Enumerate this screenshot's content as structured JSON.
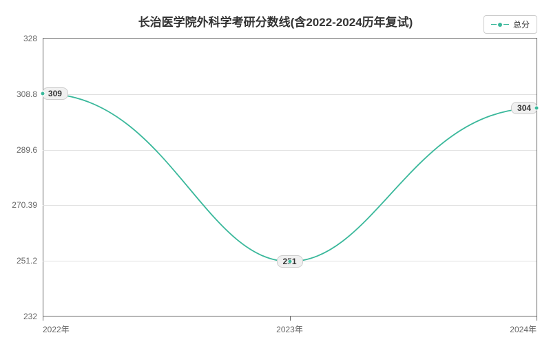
{
  "chart": {
    "type": "line",
    "title": "长治医学院外科学考研分数线(含2022-2024历年复试)",
    "title_fontsize": 17,
    "title_color": "#333333",
    "background_color": "#ffffff",
    "grid_color": "#e0e0e0",
    "axis_color": "#666666",
    "legend": {
      "label": "总分",
      "color": "#3ab89b",
      "position": "top-right"
    },
    "x_axis": {
      "categories": [
        "2022年",
        "2023年",
        "2024年"
      ],
      "label_fontsize": 12,
      "label_color": "#666666"
    },
    "y_axis": {
      "min": 232,
      "max": 328,
      "ticks": [
        232,
        251.2,
        270.39,
        289.6,
        308.8,
        328
      ],
      "label_fontsize": 12,
      "label_color": "#666666"
    },
    "series": {
      "name": "总分",
      "color": "#3ab89b",
      "line_width": 1.8,
      "values": [
        309,
        251,
        304
      ],
      "marker_size": 7,
      "smooth": true
    },
    "data_labels": {
      "background": "#f0f0f0",
      "border_color": "#cccccc",
      "text_color": "#333333",
      "fontsize": 12
    }
  }
}
